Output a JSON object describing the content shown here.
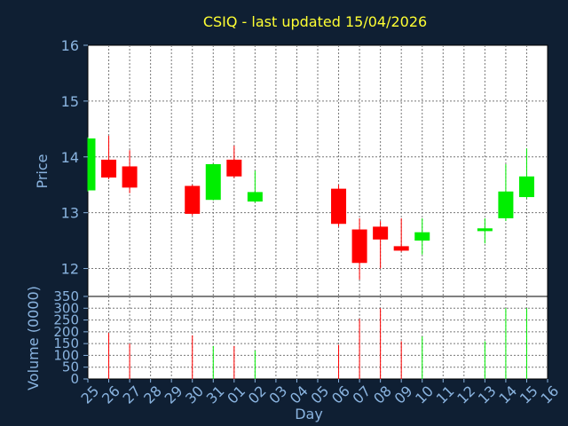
{
  "chart_data": {
    "type": "candlestick",
    "title": "CSIQ - last updated 15/04/2026",
    "ylabel": "Price",
    "volume_ylabel": "Volume (0000)",
    "xlabel": "Day",
    "ylim": [
      11.5,
      16
    ],
    "volume_ylim": [
      0,
      350
    ],
    "yticks": [
      12,
      13,
      14,
      15,
      16
    ],
    "volume_yticks": [
      0,
      50,
      100,
      150,
      200,
      250,
      300,
      350
    ],
    "x_tick_labels": [
      "25",
      "26",
      "27",
      "28",
      "29",
      "30",
      "31",
      "01",
      "02",
      "03",
      "04",
      "05",
      "06",
      "07",
      "08",
      "09",
      "10",
      "11",
      "12",
      "13",
      "14",
      "15",
      "16"
    ],
    "grid": true,
    "colors": {
      "up": "#00ee00",
      "down": "#ff0000",
      "background": "#ffffff",
      "page": "#0f1f33"
    },
    "candles": [
      {
        "day": "25",
        "open": 13.4,
        "high": 14.35,
        "low": 13.38,
        "close": 14.33
      },
      {
        "day": "26",
        "open": 13.95,
        "high": 14.38,
        "low": 13.6,
        "close": 13.63
      },
      {
        "day": "27",
        "open": 13.83,
        "high": 14.12,
        "low": 13.35,
        "close": 13.45
      },
      {
        "day": "30",
        "open": 13.48,
        "high": 13.5,
        "low": 12.95,
        "close": 12.98
      },
      {
        "day": "31",
        "open": 13.23,
        "high": 13.88,
        "low": 13.22,
        "close": 13.87
      },
      {
        "day": "01",
        "open": 13.95,
        "high": 14.2,
        "low": 13.62,
        "close": 13.65
      },
      {
        "day": "02",
        "open": 13.2,
        "high": 13.75,
        "low": 13.18,
        "close": 13.37
      },
      {
        "day": "06",
        "open": 13.43,
        "high": 13.5,
        "low": 12.75,
        "close": 12.8
      },
      {
        "day": "07",
        "open": 12.7,
        "high": 12.9,
        "low": 11.8,
        "close": 12.1
      },
      {
        "day": "08",
        "open": 12.75,
        "high": 12.85,
        "low": 12.0,
        "close": 12.52
      },
      {
        "day": "09",
        "open": 12.4,
        "high": 12.9,
        "low": 12.3,
        "close": 12.32
      },
      {
        "day": "10",
        "open": 12.5,
        "high": 12.9,
        "low": 12.25,
        "close": 12.65
      },
      {
        "day": "13",
        "open": 12.67,
        "high": 12.9,
        "low": 12.45,
        "close": 12.72
      },
      {
        "day": "14",
        "open": 12.9,
        "high": 13.87,
        "low": 12.85,
        "close": 13.38
      },
      {
        "day": "15",
        "open": 13.28,
        "high": 14.15,
        "low": 13.25,
        "close": 13.65
      }
    ],
    "volume": [
      {
        "day": "26",
        "value": 195,
        "direction": "down"
      },
      {
        "day": "27",
        "value": 150,
        "direction": "down"
      },
      {
        "day": "30",
        "value": 185,
        "direction": "down"
      },
      {
        "day": "31",
        "value": 140,
        "direction": "up"
      },
      {
        "day": "01",
        "value": 140,
        "direction": "down"
      },
      {
        "day": "02",
        "value": 120,
        "direction": "up"
      },
      {
        "day": "06",
        "value": 145,
        "direction": "down"
      },
      {
        "day": "07",
        "value": 255,
        "direction": "down"
      },
      {
        "day": "08",
        "value": 300,
        "direction": "down"
      },
      {
        "day": "09",
        "value": 160,
        "direction": "down"
      },
      {
        "day": "10",
        "value": 180,
        "direction": "up"
      },
      {
        "day": "13",
        "value": 160,
        "direction": "up"
      },
      {
        "day": "14",
        "value": 300,
        "direction": "up"
      },
      {
        "day": "15",
        "value": 300,
        "direction": "up"
      }
    ]
  }
}
